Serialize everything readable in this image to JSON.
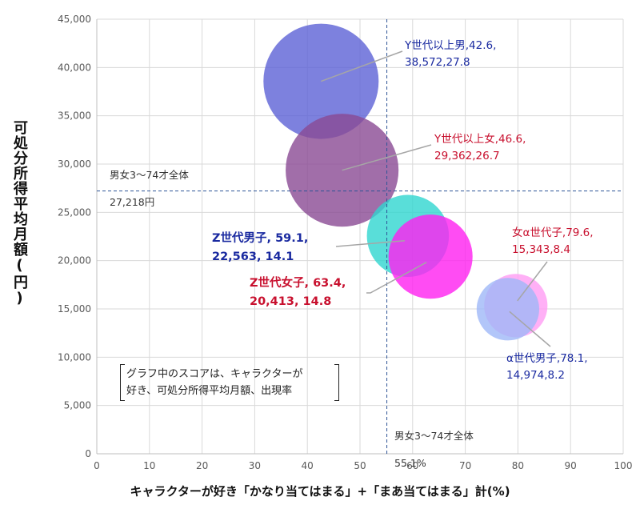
{
  "chart_data": {
    "type": "bubble",
    "xlabel": "キャラクターが好き「かなり当てはまる」+「まあ当てはまる」計(%)",
    "ylabel": "可処分所得平均月額(円)",
    "xlim": [
      0,
      100
    ],
    "ylim": [
      0,
      45000
    ],
    "x_ticks": [
      "0",
      "10",
      "20",
      "30",
      "40",
      "50",
      "60",
      "70",
      "80",
      "90",
      "100"
    ],
    "y_ticks": [
      "0",
      "5,000",
      "10,000",
      "15,000",
      "20,000",
      "25,000",
      "30,000",
      "35,000",
      "40,000",
      "45,000"
    ],
    "grid": true,
    "reference_lines": {
      "y": {
        "value": 27218,
        "label_lines": [
          "男女3～74才全体",
          "27,218円"
        ]
      },
      "x": {
        "value": 55.1,
        "label_lines": [
          "男女3～74才全体",
          "55.1%"
        ]
      }
    },
    "note_lines": [
      "グラフ中のスコアは、キャラクターが",
      "好き、可処分所得平均月額、出現率"
    ],
    "series": [
      {
        "name": "Y世代以上男",
        "x": 42.6,
        "y": 38572,
        "size": 27.8,
        "color": "#5c62d6",
        "label_color": "#1a2aa0",
        "label_lines": [
          "Y世代以上男,42.6,",
          "38,572,27.8"
        ]
      },
      {
        "name": "Y世代以上女",
        "x": 46.6,
        "y": 29362,
        "size": 26.7,
        "color": "#8a4a94",
        "label_color": "#c8102e",
        "label_lines": [
          "Y世代以上女,46.6,",
          "29,362,26.7"
        ]
      },
      {
        "name": "Z世代男子",
        "x": 59.1,
        "y": 22563,
        "size": 14.1,
        "color": "#2fd6d0",
        "label_color": "#1a2aa0",
        "label_lines": [
          "Z世代男子, 59.1,",
          "22,563, 14.1"
        ]
      },
      {
        "name": "Z世代女子",
        "x": 63.4,
        "y": 20413,
        "size": 14.8,
        "color": "#ff1ff0",
        "label_color": "#c8102e",
        "label_lines": [
          "Z世代女子, 63.4,",
          "20,413, 14.8"
        ]
      },
      {
        "name": "女α世代子",
        "x": 79.6,
        "y": 15343,
        "size": 8.4,
        "color": "#ff9cf4",
        "label_color": "#c8102e",
        "label_lines": [
          "女α世代子,79.6,",
          "15,343,8.4"
        ]
      },
      {
        "name": "α世代男子",
        "x": 78.1,
        "y": 14974,
        "size": 8.2,
        "color": "#9fb8f7",
        "label_color": "#1a2aa0",
        "label_lines": [
          "α世代男子,78.1,",
          "14,974,8.2"
        ]
      }
    ]
  }
}
